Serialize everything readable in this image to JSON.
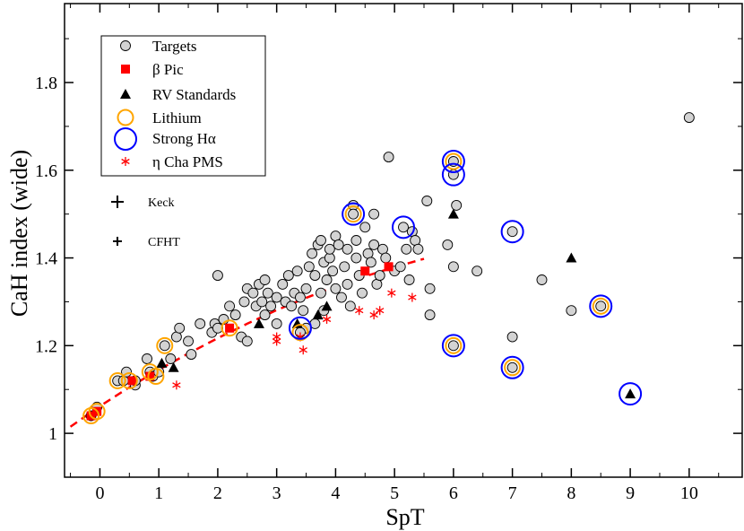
{
  "chart_data": {
    "type": "scatter",
    "title": "",
    "xlabel": "SpT",
    "ylabel": "CaH index (wide)",
    "xlim": [
      -0.6,
      10.9
    ],
    "ylim": [
      0.9,
      1.98
    ],
    "xticks": [
      0,
      1,
      2,
      3,
      4,
      5,
      6,
      7,
      8,
      9,
      10
    ],
    "yticks": [
      1,
      1.2,
      1.4,
      1.6,
      1.8
    ],
    "ytick_labels": [
      "1",
      "1.2",
      "1.4",
      "1.6",
      "1.8"
    ],
    "legend_position": "top-left",
    "legend": [
      {
        "key": "targets",
        "label": "Targets"
      },
      {
        "key": "beta_pic",
        "label": "β Pic"
      },
      {
        "key": "rv_standards",
        "label": "RV Standards"
      },
      {
        "key": "lithium",
        "label": "Lithium"
      },
      {
        "key": "strong_halpha",
        "label": "Strong Hα"
      },
      {
        "key": "eta_cha",
        "label": "η Cha PMS"
      }
    ],
    "telescope_legend": [
      {
        "key": "keck",
        "label": "Keck"
      },
      {
        "key": "cfht",
        "label": "CFHT"
      }
    ],
    "colors": {
      "targets_fill": "#d3d3d3",
      "beta_pic": "#ff0000",
      "rv_standards": "#000000",
      "lithium": "#ffa500",
      "strong_halpha": "#0000ff",
      "eta_cha": "#ff0000",
      "fit_line": "#ff0000"
    },
    "fit_line": {
      "x": [
        -0.5,
        0,
        0.5,
        1,
        1.5,
        2,
        2.5,
        3,
        3.5,
        4,
        4.5,
        5,
        5.5
      ],
      "y": [
        1.015,
        1.062,
        1.105,
        1.145,
        1.182,
        1.217,
        1.25,
        1.281,
        1.309,
        1.335,
        1.358,
        1.379,
        1.398
      ]
    },
    "series": [
      {
        "key": "targets",
        "points": [
          [
            -0.15,
            1.04
          ],
          [
            -0.05,
            1.06
          ],
          [
            0.3,
            1.12
          ],
          [
            0.4,
            1.12
          ],
          [
            0.45,
            1.14
          ],
          [
            0.6,
            1.11
          ],
          [
            0.6,
            1.12
          ],
          [
            0.8,
            1.17
          ],
          [
            0.85,
            1.14
          ],
          [
            0.9,
            1.13
          ],
          [
            1.0,
            1.14
          ],
          [
            1.1,
            1.2
          ],
          [
            1.2,
            1.17
          ],
          [
            1.3,
            1.22
          ],
          [
            1.35,
            1.24
          ],
          [
            1.5,
            1.21
          ],
          [
            1.55,
            1.18
          ],
          [
            1.7,
            1.25
          ],
          [
            1.9,
            1.23
          ],
          [
            1.95,
            1.25
          ],
          [
            2.0,
            1.24
          ],
          [
            2.0,
            1.36
          ],
          [
            2.1,
            1.26
          ],
          [
            2.2,
            1.29
          ],
          [
            2.3,
            1.27
          ],
          [
            2.4,
            1.22
          ],
          [
            2.45,
            1.3
          ],
          [
            2.5,
            1.21
          ],
          [
            2.5,
            1.33
          ],
          [
            2.6,
            1.32
          ],
          [
            2.65,
            1.29
          ],
          [
            2.7,
            1.34
          ],
          [
            2.75,
            1.3
          ],
          [
            2.8,
            1.27
          ],
          [
            2.8,
            1.35
          ],
          [
            2.85,
            1.32
          ],
          [
            2.9,
            1.29
          ],
          [
            3.0,
            1.25
          ],
          [
            3.0,
            1.31
          ],
          [
            3.1,
            1.34
          ],
          [
            3.15,
            1.3
          ],
          [
            3.2,
            1.36
          ],
          [
            3.25,
            1.29
          ],
          [
            3.3,
            1.32
          ],
          [
            3.35,
            1.37
          ],
          [
            3.4,
            1.31
          ],
          [
            3.45,
            1.28
          ],
          [
            3.5,
            1.24
          ],
          [
            3.5,
            1.33
          ],
          [
            3.55,
            1.38
          ],
          [
            3.6,
            1.41
          ],
          [
            3.65,
            1.36
          ],
          [
            3.65,
            1.25
          ],
          [
            3.7,
            1.43
          ],
          [
            3.75,
            1.32
          ],
          [
            3.75,
            1.44
          ],
          [
            3.8,
            1.39
          ],
          [
            3.8,
            1.28
          ],
          [
            3.85,
            1.35
          ],
          [
            3.9,
            1.4
          ],
          [
            3.9,
            1.42
          ],
          [
            3.95,
            1.37
          ],
          [
            4.0,
            1.45
          ],
          [
            4.0,
            1.33
          ],
          [
            4.05,
            1.43
          ],
          [
            4.1,
            1.31
          ],
          [
            4.15,
            1.38
          ],
          [
            4.2,
            1.42
          ],
          [
            4.2,
            1.34
          ],
          [
            4.25,
            1.29
          ],
          [
            4.3,
            1.52
          ],
          [
            4.35,
            1.44
          ],
          [
            4.35,
            1.4
          ],
          [
            4.4,
            1.36
          ],
          [
            4.45,
            1.32
          ],
          [
            4.5,
            1.47
          ],
          [
            4.55,
            1.41
          ],
          [
            4.6,
            1.39
          ],
          [
            4.65,
            1.5
          ],
          [
            4.65,
            1.43
          ],
          [
            4.7,
            1.34
          ],
          [
            4.75,
            1.36
          ],
          [
            4.8,
            1.42
          ],
          [
            4.85,
            1.4
          ],
          [
            4.9,
            1.63
          ],
          [
            5.0,
            1.37
          ],
          [
            5.1,
            1.38
          ],
          [
            5.2,
            1.42
          ],
          [
            5.25,
            1.35
          ],
          [
            5.3,
            1.46
          ],
          [
            5.35,
            1.44
          ],
          [
            5.4,
            1.42
          ],
          [
            5.55,
            1.53
          ],
          [
            5.6,
            1.33
          ],
          [
            5.6,
            1.27
          ],
          [
            5.9,
            1.43
          ],
          [
            6.0,
            1.59
          ],
          [
            6.0,
            1.38
          ],
          [
            6.05,
            1.52
          ],
          [
            6.4,
            1.37
          ],
          [
            7.0,
            1.22
          ],
          [
            7.5,
            1.35
          ],
          [
            8.0,
            1.28
          ],
          [
            10.0,
            1.72
          ],
          [
            4.3,
            1.5
          ],
          [
            5.15,
            1.47
          ],
          [
            6.0,
            1.62
          ],
          [
            6.0,
            1.2
          ],
          [
            7.0,
            1.46
          ],
          [
            7.0,
            1.15
          ],
          [
            8.5,
            1.29
          ],
          [
            3.4,
            1.23
          ]
        ]
      },
      {
        "key": "beta_pic",
        "points": [
          [
            -0.15,
            1.04
          ],
          [
            -0.05,
            1.05
          ],
          [
            0.55,
            1.12
          ],
          [
            0.85,
            1.13
          ],
          [
            2.2,
            1.24
          ],
          [
            4.5,
            1.37
          ],
          [
            4.9,
            1.38
          ]
        ]
      },
      {
        "key": "rv_standards",
        "points": [
          [
            1.05,
            1.16
          ],
          [
            1.25,
            1.15
          ],
          [
            2.7,
            1.25
          ],
          [
            3.35,
            1.25
          ],
          [
            3.7,
            1.27
          ],
          [
            3.85,
            1.29
          ],
          [
            6.0,
            1.5
          ],
          [
            8.0,
            1.4
          ],
          [
            9.0,
            1.09
          ]
        ]
      },
      {
        "key": "lithium",
        "points": [
          [
            -0.15,
            1.04
          ],
          [
            -0.05,
            1.05
          ],
          [
            0.3,
            1.12
          ],
          [
            0.5,
            1.12
          ],
          [
            0.85,
            1.14
          ],
          [
            0.95,
            1.13
          ],
          [
            1.1,
            1.2
          ],
          [
            2.2,
            1.24
          ],
          [
            3.4,
            1.23
          ],
          [
            4.3,
            1.5
          ],
          [
            6.0,
            1.62
          ],
          [
            6.0,
            1.2
          ],
          [
            7.0,
            1.15
          ],
          [
            8.5,
            1.29
          ]
        ]
      },
      {
        "key": "strong_halpha",
        "points": [
          [
            3.4,
            1.24
          ],
          [
            4.3,
            1.5
          ],
          [
            5.15,
            1.47
          ],
          [
            6.0,
            1.62
          ],
          [
            6.0,
            1.59
          ],
          [
            6.0,
            1.2
          ],
          [
            7.0,
            1.46
          ],
          [
            7.0,
            1.15
          ],
          [
            8.5,
            1.29
          ],
          [
            9.0,
            1.09
          ]
        ]
      },
      {
        "key": "eta_cha",
        "points": [
          [
            1.3,
            1.11
          ],
          [
            3.0,
            1.21
          ],
          [
            3.0,
            1.22
          ],
          [
            3.4,
            1.22
          ],
          [
            3.45,
            1.19
          ],
          [
            3.85,
            1.26
          ],
          [
            4.4,
            1.28
          ],
          [
            4.65,
            1.27
          ],
          [
            4.75,
            1.28
          ],
          [
            4.95,
            1.32
          ],
          [
            5.3,
            1.31
          ]
        ]
      }
    ]
  }
}
